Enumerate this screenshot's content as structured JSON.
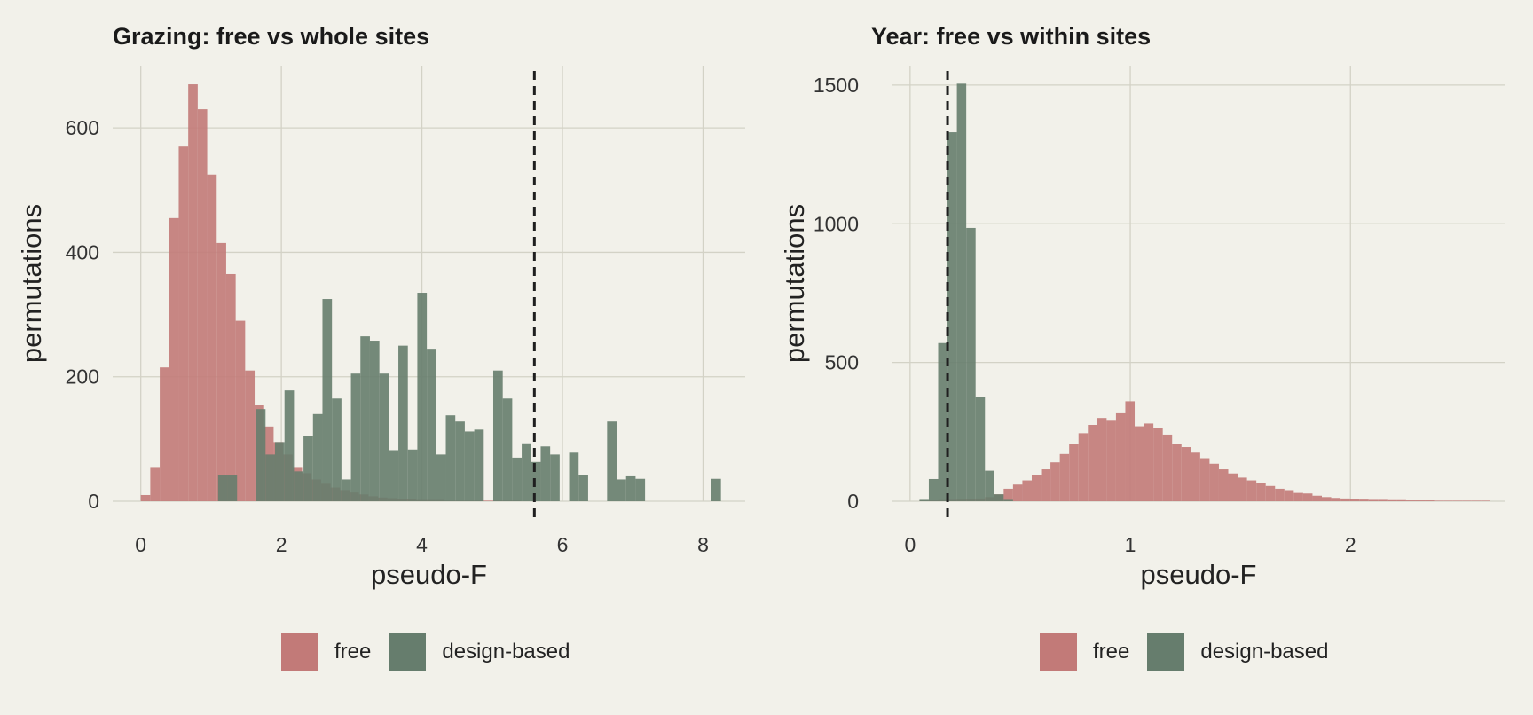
{
  "chart_data": [
    {
      "type": "histogram",
      "title": "Grazing: free vs whole sites",
      "xlabel": "pseudo-F",
      "ylabel": "permutations",
      "xlim": [
        -0.4,
        8.6
      ],
      "ylim": [
        0,
        700
      ],
      "xticks": [
        0,
        2,
        4,
        6,
        8
      ],
      "yticks": [
        0,
        200,
        400,
        600
      ],
      "bin_width": 0.135,
      "reference_line": {
        "x": 5.6,
        "style": "dashed"
      },
      "legend_position": "bottom",
      "series": [
        {
          "name": "free",
          "bin_start": 0.0,
          "values": [
            10,
            55,
            215,
            455,
            570,
            670,
            630,
            525,
            415,
            365,
            290,
            210,
            155,
            120,
            95,
            75,
            55,
            45,
            35,
            28,
            22,
            18,
            14,
            11,
            8,
            6,
            5,
            4,
            3,
            2,
            2,
            2,
            1,
            1,
            1,
            1,
            1,
            1,
            1,
            1,
            0,
            0,
            0,
            0,
            0,
            0,
            0,
            0,
            0,
            0,
            0,
            0,
            0,
            0,
            0,
            0,
            0,
            0,
            0,
            0,
            0
          ]
        },
        {
          "name": "design-based",
          "bin_start": 0.0,
          "values": [
            0,
            0,
            0,
            0,
            0,
            0,
            0,
            0,
            0,
            0,
            0,
            0,
            0,
            0,
            0,
            0,
            0,
            0,
            0,
            0,
            0,
            0,
            0,
            0,
            0,
            0,
            0,
            0,
            0,
            0,
            0,
            0,
            0,
            0,
            0,
            0,
            0,
            0,
            0,
            0,
            0,
            0,
            0,
            0,
            0,
            0,
            0,
            0,
            0,
            0,
            0,
            0,
            0,
            0,
            0,
            0,
            0,
            0,
            0,
            0,
            0
          ]
        }
      ],
      "design_bins": [
        [
          1.1,
          42
        ],
        [
          1.235,
          42
        ],
        [
          1.64,
          148
        ],
        [
          1.775,
          75
        ],
        [
          1.91,
          95
        ],
        [
          2.045,
          178
        ],
        [
          2.18,
          48
        ],
        [
          2.315,
          105
        ],
        [
          2.45,
          140
        ],
        [
          2.585,
          325
        ],
        [
          2.72,
          165
        ],
        [
          2.855,
          35
        ],
        [
          2.99,
          205
        ],
        [
          3.125,
          265
        ],
        [
          3.26,
          258
        ],
        [
          3.395,
          205
        ],
        [
          3.53,
          82
        ],
        [
          3.665,
          250
        ],
        [
          3.8,
          83
        ],
        [
          3.935,
          335
        ],
        [
          4.07,
          245
        ],
        [
          4.205,
          75
        ],
        [
          4.34,
          138
        ],
        [
          4.475,
          128
        ],
        [
          4.61,
          112
        ],
        [
          4.745,
          115
        ],
        [
          4.88,
          0
        ],
        [
          5.015,
          210
        ],
        [
          5.15,
          165
        ],
        [
          5.285,
          70
        ],
        [
          5.42,
          93
        ],
        [
          5.555,
          63
        ],
        [
          5.69,
          88
        ],
        [
          5.825,
          75
        ],
        [
          6.095,
          78
        ],
        [
          6.23,
          42
        ],
        [
          6.635,
          128
        ],
        [
          6.77,
          35
        ],
        [
          6.905,
          40
        ],
        [
          7.04,
          36
        ],
        [
          8.12,
          36
        ]
      ]
    },
    {
      "type": "histogram",
      "title": "Year: free vs within sites",
      "xlabel": "pseudo-F",
      "ylabel": "permutations",
      "xlim": [
        -0.08,
        2.7
      ],
      "ylim": [
        0,
        1570
      ],
      "xticks": [
        0,
        1,
        2
      ],
      "yticks": [
        0,
        500,
        1000,
        1500
      ],
      "bin_width": 0.0425,
      "reference_line": {
        "x": 0.17,
        "style": "dashed"
      },
      "legend_position": "bottom",
      "series": [
        {
          "name": "free",
          "bin_start": 0.0425,
          "values": [
            2,
            3,
            4,
            5,
            6,
            8,
            10,
            15,
            25,
            45,
            60,
            75,
            95,
            115,
            140,
            170,
            205,
            245,
            275,
            300,
            290,
            320,
            360,
            270,
            280,
            265,
            240,
            205,
            195,
            175,
            155,
            135,
            115,
            100,
            85,
            75,
            65,
            55,
            45,
            40,
            30,
            28,
            20,
            15,
            12,
            10,
            8,
            6,
            5,
            5,
            4,
            4,
            3,
            3,
            3,
            2,
            2,
            2,
            2,
            2,
            2
          ]
        },
        {
          "name": "design-based",
          "bin_start": 0.0425,
          "values": [
            5,
            80,
            570,
            1330,
            1505,
            985,
            375,
            110,
            25,
            5
          ]
        }
      ]
    }
  ],
  "legend": {
    "free_label": "free",
    "design_label": "design-based",
    "free_color": "#c27a78",
    "design_color": "#667d6d"
  }
}
